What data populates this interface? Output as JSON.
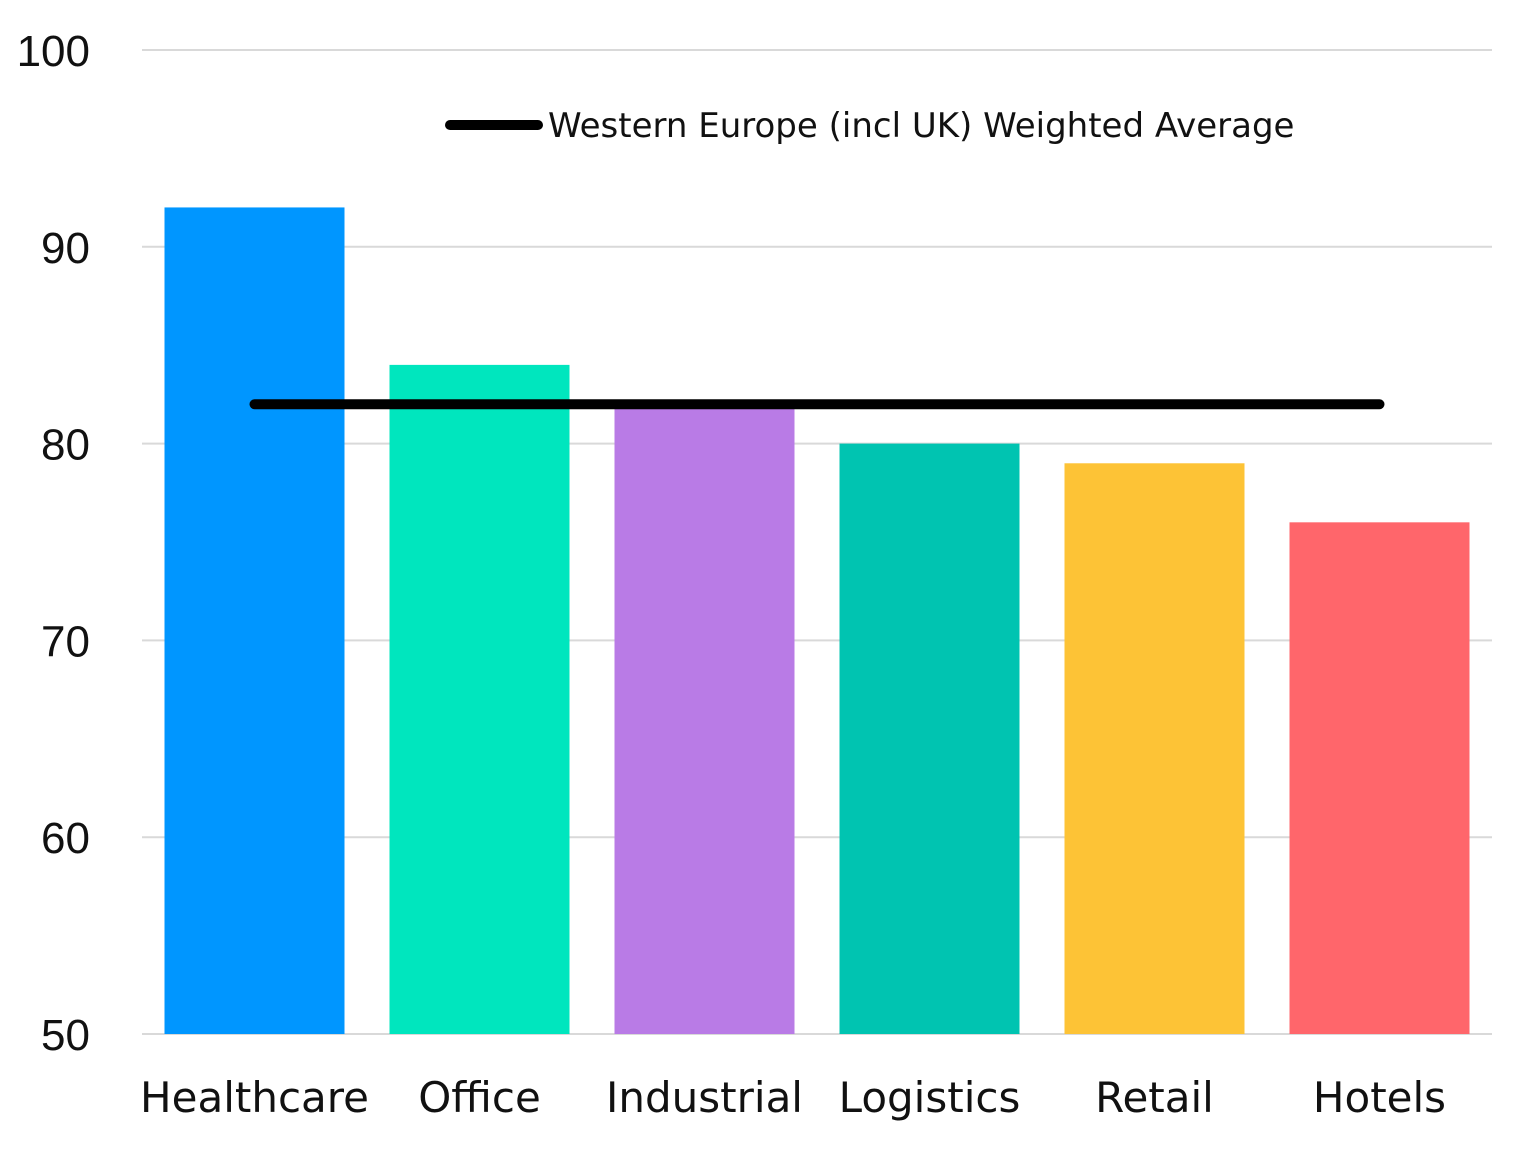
{
  "chart_data": {
    "type": "bar",
    "categories": [
      "Healthcare",
      "Office",
      "Industrial",
      "Logistics",
      "Retail",
      "Hotels"
    ],
    "values": [
      92,
      84,
      82,
      80,
      79,
      76
    ],
    "colors": [
      "#0096FF",
      "#00E6BE",
      "#B97BE6",
      "#00C4B1",
      "#FDC336",
      "#FF666B"
    ],
    "reference_line": {
      "name": "Western Europe (incl UK) Weighted Average",
      "value": 82,
      "color": "#000000"
    },
    "ylim": [
      50,
      100
    ],
    "yticks": [
      50,
      60,
      70,
      80,
      90,
      100
    ],
    "grid": true,
    "legend": "top-center"
  }
}
